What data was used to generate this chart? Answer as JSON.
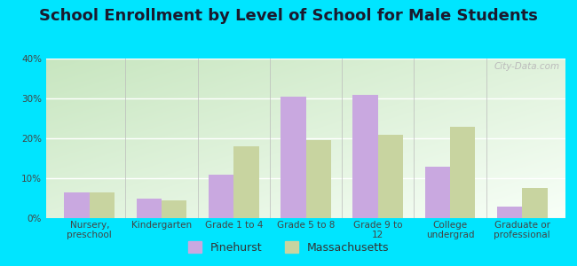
{
  "title": "School Enrollment by Level of School for Male Students",
  "categories": [
    "Nursery,\npreschool",
    "Kindergarten",
    "Grade 1 to 4",
    "Grade 5 to 8",
    "Grade 9 to\n12",
    "College\nundergrad",
    "Graduate or\nprofessional"
  ],
  "pinehurst": [
    6.5,
    5.0,
    11.0,
    30.5,
    31.0,
    13.0,
    3.0
  ],
  "massachusetts": [
    6.5,
    4.5,
    18.0,
    19.5,
    21.0,
    23.0,
    7.5
  ],
  "pinehurst_color": "#c9a8e0",
  "massachusetts_color": "#c8d4a0",
  "background_outer": "#00e5ff",
  "grad_top_left": "#c8e6c0",
  "grad_bottom_right": "#f8fff8",
  "ylim": [
    0,
    40
  ],
  "yticks": [
    0,
    10,
    20,
    30,
    40
  ],
  "bar_width": 0.35,
  "title_fontsize": 13,
  "tick_fontsize": 7.5,
  "legend_labels": [
    "Pinehurst",
    "Massachusetts"
  ],
  "watermark": "City-Data.com"
}
